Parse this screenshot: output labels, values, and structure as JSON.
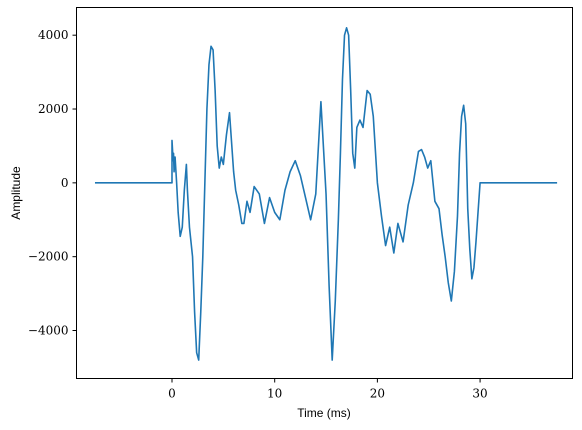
{
  "chart_data": {
    "type": "line",
    "title": "",
    "xlabel": "Time (ms)",
    "ylabel": "Amplitude",
    "xlim": [
      -9.3,
      39.0
    ],
    "ylim": [
      -5300,
      4750
    ],
    "xticks": [
      0,
      10,
      20,
      30
    ],
    "yticks": [
      -4000,
      -2000,
      0,
      2000,
      4000
    ],
    "ytick_labels": [
      "−4000",
      "−2000",
      "0",
      "2000",
      "4000"
    ],
    "grid": false,
    "legend": "none",
    "color": "#1f77b4",
    "series": [
      {
        "x": [
          -7.5,
          0,
          0,
          0.05,
          0.1,
          0.15,
          0.2,
          0.3,
          0.45,
          0.6,
          0.8,
          1.0,
          1.2,
          1.4,
          1.5,
          1.7,
          2.0,
          2.2,
          2.4,
          2.6,
          2.8,
          3.0,
          3.2,
          3.4,
          3.6,
          3.8,
          4.0,
          4.2,
          4.4,
          4.6,
          4.8,
          5.0,
          5.3,
          5.6,
          6.0,
          6.2,
          6.5,
          6.8,
          7.0,
          7.3,
          7.6,
          8.0,
          8.5,
          9.0,
          9.5,
          10.0,
          10.5,
          11.0,
          11.5,
          12.0,
          12.5,
          13.0,
          13.5,
          14.0,
          14.5,
          15.0,
          15.3,
          15.6,
          15.9,
          16.2,
          16.4,
          16.6,
          16.8,
          17.0,
          17.2,
          17.4,
          17.6,
          17.8,
          18.0,
          18.3,
          18.6,
          19.0,
          19.3,
          19.6,
          20.0,
          20.4,
          20.8,
          21.2,
          21.6,
          22.0,
          22.5,
          23.0,
          23.5,
          24.0,
          24.3,
          24.6,
          24.9,
          25.2,
          25.6,
          26.0,
          26.3,
          26.6,
          26.9,
          27.2,
          27.5,
          27.8,
          28.0,
          28.2,
          28.4,
          28.6,
          28.8,
          29.0,
          29.2,
          29.4,
          29.6,
          29.8,
          30.0,
          30.0,
          37.5
        ],
        "y": [
          0,
          0,
          1150,
          900,
          600,
          800,
          300,
          700,
          0,
          -800,
          -1450,
          -1200,
          -200,
          500,
          -200,
          -1200,
          -2000,
          -3500,
          -4600,
          -4800,
          -3500,
          -2000,
          0,
          2000,
          3200,
          3700,
          3600,
          2500,
          1000,
          400,
          700,
          500,
          1300,
          1900,
          300,
          -200,
          -600,
          -1100,
          -1100,
          -500,
          -800,
          -100,
          -300,
          -1100,
          -400,
          -800,
          -1000,
          -200,
          300,
          600,
          200,
          -400,
          -1000,
          -300,
          2200,
          -300,
          -2800,
          -4800,
          -3200,
          -1000,
          800,
          2800,
          4000,
          4200,
          4000,
          2500,
          800,
          400,
          1500,
          1700,
          1500,
          2500,
          2400,
          1800,
          0,
          -900,
          -1700,
          -1200,
          -1900,
          -1100,
          -1600,
          -600,
          0,
          850,
          900,
          700,
          400,
          600,
          -500,
          -700,
          -1400,
          -2000,
          -2700,
          -3200,
          -2400,
          -900,
          800,
          1800,
          2100,
          1600,
          -700,
          -1800,
          -2600,
          -2300,
          -1600,
          -800,
          0,
          0,
          0
        ]
      }
    ]
  }
}
